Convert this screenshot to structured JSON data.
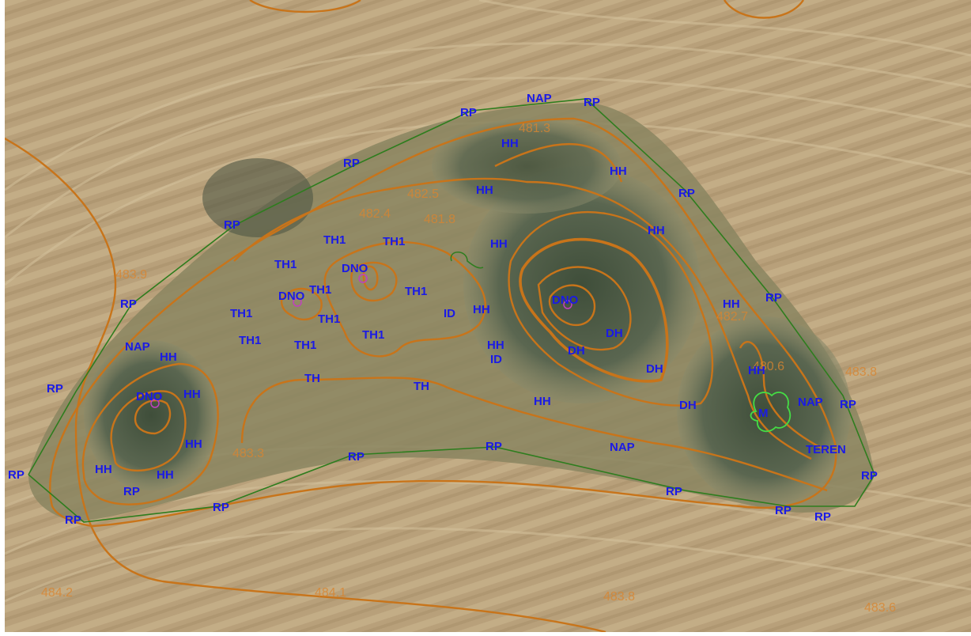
{
  "map": {
    "colors": {
      "field": "#b79f78",
      "vegetation": "#4f5c45",
      "contour": "#c8741a",
      "boundary": "#2e7d1e",
      "point_label": "#1a1ae6",
      "marker": "#c040c0"
    },
    "isolines": [
      {
        "id": "iso-483-9",
        "text": "483.9"
      },
      {
        "id": "iso-484-2",
        "text": "484.2"
      },
      {
        "id": "iso-484-1",
        "text": "484.1"
      },
      {
        "id": "iso-483-8a",
        "text": "483.8"
      },
      {
        "id": "iso-483-6",
        "text": "483.6"
      },
      {
        "id": "iso-483-8b",
        "text": "483.8"
      },
      {
        "id": "iso-483-3",
        "text": "483.3"
      },
      {
        "id": "iso-482-7",
        "text": "482.7"
      },
      {
        "id": "iso-482-4",
        "text": "482.4"
      },
      {
        "id": "iso-482-5",
        "text": "482.5"
      },
      {
        "id": "iso-481-8",
        "text": "481.8"
      },
      {
        "id": "iso-481-3",
        "text": "481.3"
      },
      {
        "id": "iso-480-6",
        "text": "480.6"
      }
    ],
    "points": [
      {
        "code": "NAP"
      },
      {
        "code": "RP"
      },
      {
        "code": "RP"
      },
      {
        "code": "HH"
      },
      {
        "code": "RP"
      },
      {
        "code": "HH"
      },
      {
        "code": "HH"
      },
      {
        "code": "RP"
      },
      {
        "code": "RP"
      },
      {
        "code": "HH"
      },
      {
        "code": "TH1"
      },
      {
        "code": "TH1"
      },
      {
        "code": "HH"
      },
      {
        "code": "TH1"
      },
      {
        "code": "DNO"
      },
      {
        "code": "DNO"
      },
      {
        "code": "TH1"
      },
      {
        "code": "TH1"
      },
      {
        "code": "RP"
      },
      {
        "code": "TH1"
      },
      {
        "code": "TH1"
      },
      {
        "code": "ID"
      },
      {
        "code": "HH"
      },
      {
        "code": "DNO"
      },
      {
        "code": "HH"
      },
      {
        "code": "RP"
      },
      {
        "code": "TH1"
      },
      {
        "code": "TH1"
      },
      {
        "code": "TH1"
      },
      {
        "code": "DH"
      },
      {
        "code": "HH"
      },
      {
        "code": "DH"
      },
      {
        "code": "ID"
      },
      {
        "code": "NAP"
      },
      {
        "code": "HH"
      },
      {
        "code": "TH"
      },
      {
        "code": "TH"
      },
      {
        "code": "DH"
      },
      {
        "code": "HH"
      },
      {
        "code": "DNO"
      },
      {
        "code": "HH"
      },
      {
        "code": "RP"
      },
      {
        "code": "HH"
      },
      {
        "code": "DH"
      },
      {
        "code": "NAP"
      },
      {
        "code": "RP"
      },
      {
        "code": "M"
      },
      {
        "code": "RP"
      },
      {
        "code": "RP"
      },
      {
        "code": "TEREN"
      },
      {
        "code": "HH"
      },
      {
        "code": "HH"
      },
      {
        "code": "NAP"
      },
      {
        "code": "RP"
      },
      {
        "code": "RP"
      },
      {
        "code": "HH"
      },
      {
        "code": "RP"
      },
      {
        "code": "RP"
      },
      {
        "code": "RP"
      },
      {
        "code": "RP"
      },
      {
        "code": "RP"
      },
      {
        "code": "RP"
      }
    ]
  }
}
